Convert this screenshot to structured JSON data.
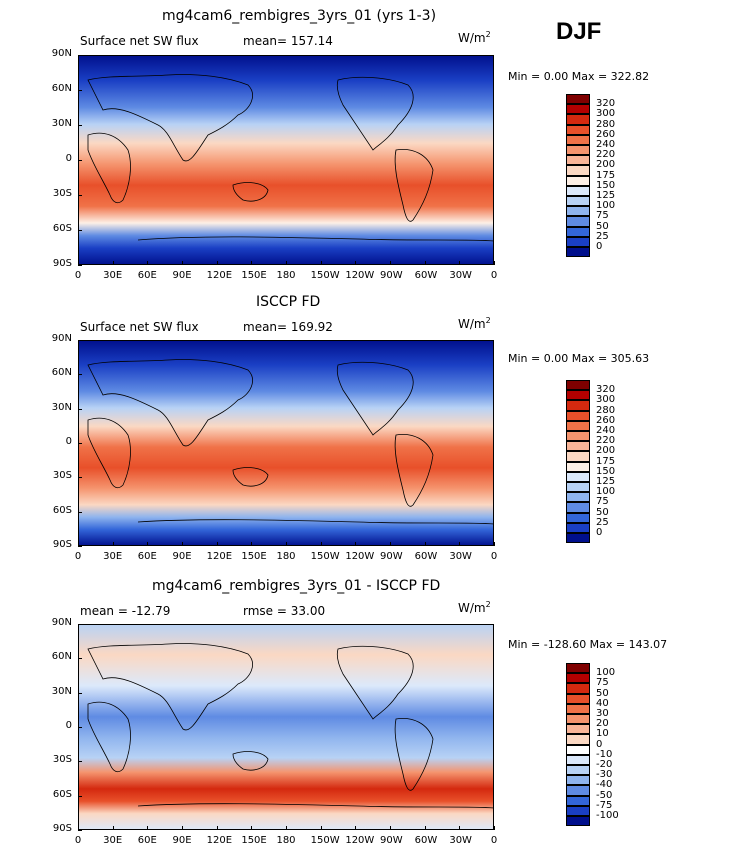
{
  "season": "DJF",
  "unit_main": "W/m",
  "unit_sup": "2",
  "x_ticks": [
    "0",
    "30E",
    "60E",
    "90E",
    "120E",
    "150E",
    "180",
    "150W",
    "120W",
    "90W",
    "60W",
    "30W",
    "0"
  ],
  "y_ticks": [
    "90N",
    "60N",
    "30N",
    "0",
    "30S",
    "60S",
    "90S"
  ],
  "panels": [
    {
      "title": "mg4cam6_rembigres_3yrs_01 (yrs 1-3)",
      "left_label": "Surface net SW flux",
      "stat_label": "mean=",
      "stat_value": "157.14",
      "min_text": "Min =     0.00 Max = 322.82"
    },
    {
      "title": "ISCCP FD",
      "left_label": "Surface net SW flux",
      "stat_label": "mean=",
      "stat_value": "169.92",
      "min_text": "Min =     0.00 Max = 305.63"
    },
    {
      "title": "mg4cam6_rembigres_3yrs_01 - ISCCP FD",
      "left_label": "mean = -12.79",
      "stat_label": "rmse =",
      "stat_value": "33.00",
      "min_text": "Min = -128.60 Max = 143.07"
    }
  ],
  "legend_abs": {
    "labels": [
      "320",
      "300",
      "280",
      "260",
      "240",
      "220",
      "200",
      "175",
      "150",
      "125",
      "100",
      "75",
      "50",
      "25",
      "0"
    ],
    "colors": [
      "#7f0000",
      "#b30000",
      "#d4290f",
      "#e8502a",
      "#f07248",
      "#f5946e",
      "#f9b598",
      "#fbd8c3",
      "#fdf0e6",
      "#dce9fb",
      "#b8d2f5",
      "#8fb4ee",
      "#5f8be3",
      "#3366d9",
      "#1a3fc4",
      "#000f8c"
    ]
  },
  "legend_diff": {
    "labels": [
      "100",
      "75",
      "50",
      "40",
      "30",
      "20",
      "10",
      "0",
      "-10",
      "-20",
      "-30",
      "-40",
      "-50",
      "-75",
      "-100"
    ],
    "colors": [
      "#7f0000",
      "#b30000",
      "#d4290f",
      "#e8502a",
      "#f07248",
      "#f5946e",
      "#f9b598",
      "#fbd8c3",
      "#ffffff",
      "#dce9fb",
      "#b8d2f5",
      "#8fb4ee",
      "#5f8be3",
      "#3366d9",
      "#1a3fc4",
      "#000f8c"
    ]
  }
}
